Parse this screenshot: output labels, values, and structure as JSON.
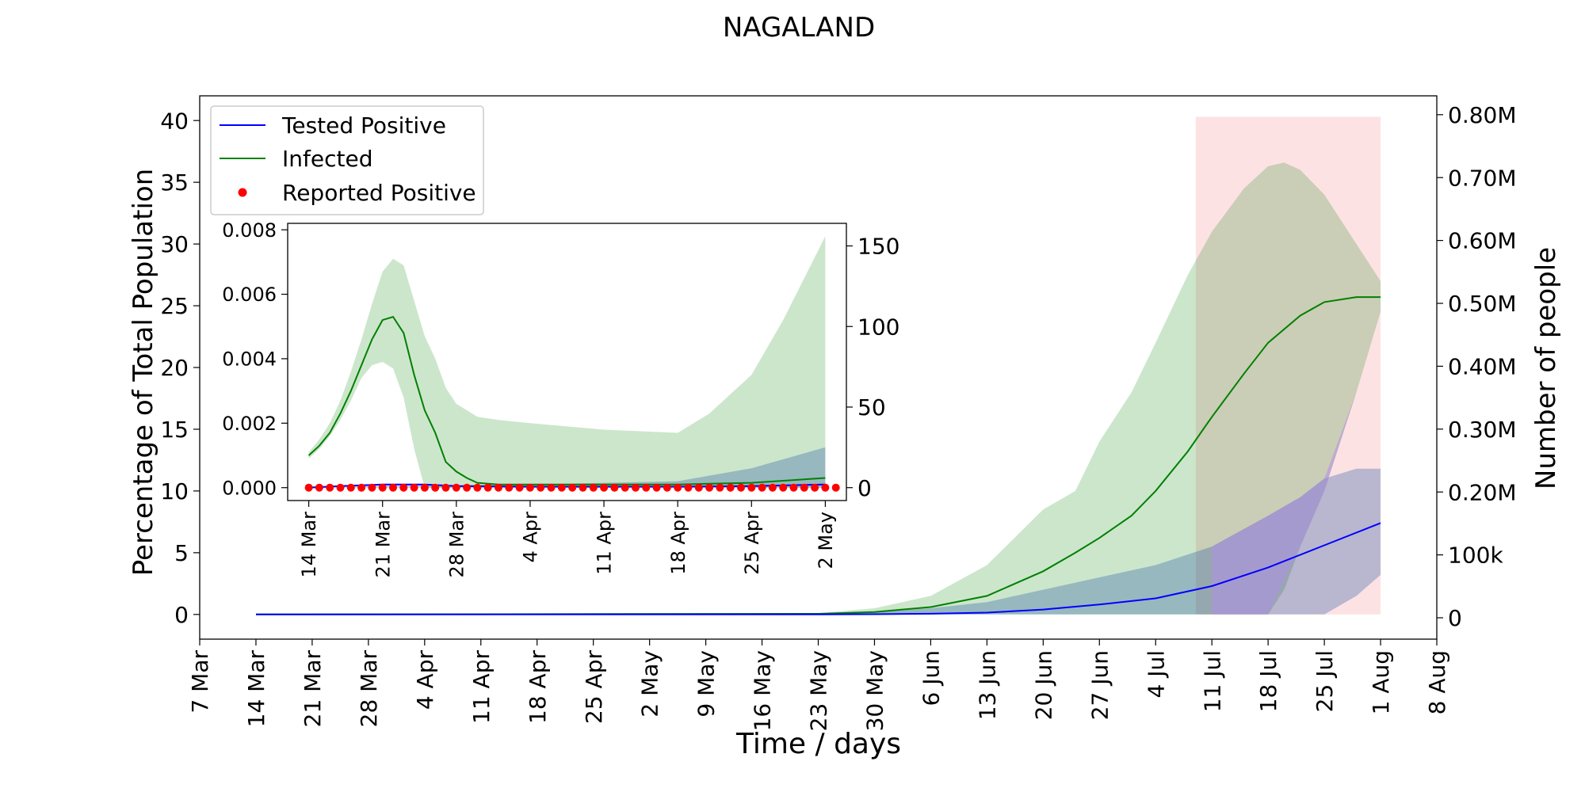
{
  "chart_data": [
    {
      "id": "main",
      "type": "line",
      "title": "NAGALAND",
      "xlabel": "Time / days",
      "ylabel": "Percentage of Total Population",
      "ylabel_right": "Number of people",
      "x_range": [
        "2020-03-07",
        "2020-08-08"
      ],
      "ylim": [
        -2,
        42
      ],
      "ylim_right": [
        -34000,
        830000
      ],
      "x_ticks": [
        "7 Mar",
        "14 Mar",
        "21 Mar",
        "28 Mar",
        "4 Apr",
        "11 Apr",
        "18 Apr",
        "25 Apr",
        "2 May",
        "9 May",
        "16 May",
        "23 May",
        "30 May",
        "6 Jun",
        "13 Jun",
        "20 Jun",
        "27 Jun",
        "4 Jul",
        "11 Jul",
        "18 Jul",
        "25 Jul",
        "1 Aug",
        "8 Aug"
      ],
      "y_ticks": [
        "0",
        "5",
        "10",
        "15",
        "20",
        "25",
        "30",
        "35",
        "40"
      ],
      "y_ticks_right": [
        "0",
        "100k",
        "0.20M",
        "0.30M",
        "0.40M",
        "0.50M",
        "0.60M",
        "0.70M",
        "0.80M"
      ],
      "legend_position": "top-left",
      "legend": [
        "Tested Positive",
        "Infected",
        "Reported Positive"
      ],
      "highlight_region": {
        "x": [
          "2020-07-09",
          "2020-08-01"
        ],
        "y": [
          0,
          40.3
        ],
        "color": "#fde2e4"
      },
      "series": [
        {
          "name": "Infected",
          "color": "#008000",
          "x": [
            "2020-03-14",
            "2020-05-23",
            "2020-05-30",
            "2020-06-06",
            "2020-06-13",
            "2020-06-20",
            "2020-06-24",
            "2020-06-27",
            "2020-07-01",
            "2020-07-04",
            "2020-07-08",
            "2020-07-11",
            "2020-07-15",
            "2020-07-18",
            "2020-07-22",
            "2020-07-25",
            "2020-07-29",
            "2020-08-01"
          ],
          "values": [
            0,
            0.05,
            0.2,
            0.6,
            1.5,
            3.5,
            5,
            6.2,
            8,
            10,
            13.2,
            16,
            19.5,
            22,
            24.2,
            25.3,
            25.7,
            25.7
          ]
        },
        {
          "name": "Infected (range)",
          "color": "#cce5cc",
          "x": [
            "2020-05-23",
            "2020-05-30",
            "2020-06-06",
            "2020-06-13",
            "2020-06-20",
            "2020-06-24",
            "2020-06-27",
            "2020-07-01",
            "2020-07-04",
            "2020-07-08",
            "2020-07-11",
            "2020-07-15",
            "2020-07-18",
            "2020-07-20",
            "2020-07-22",
            "2020-07-25",
            "2020-07-29",
            "2020-08-01"
          ],
          "lower": [
            0,
            0,
            0,
            0,
            0,
            0,
            0,
            0,
            0,
            0,
            0,
            0,
            0,
            2,
            5.5,
            10,
            18,
            24.5
          ],
          "upper": [
            0.1,
            0.5,
            1.5,
            4,
            8.5,
            10,
            14,
            18,
            22,
            27.5,
            31,
            34.5,
            36.3,
            36.6,
            36,
            34,
            30,
            27
          ]
        },
        {
          "name": "Tested Positive",
          "color": "#0000ff",
          "x": [
            "2020-03-14",
            "2020-05-23",
            "2020-05-30",
            "2020-06-06",
            "2020-06-13",
            "2020-06-20",
            "2020-06-27",
            "2020-07-04",
            "2020-07-11",
            "2020-07-18",
            "2020-07-25",
            "2020-08-01"
          ],
          "values": [
            0,
            0,
            0.02,
            0.06,
            0.15,
            0.4,
            0.8,
            1.3,
            2.3,
            3.8,
            5.6,
            7.4
          ]
        },
        {
          "name": "Tested Positive (range)",
          "color": "#a6bed8",
          "x": [
            "2020-05-23",
            "2020-05-30",
            "2020-06-06",
            "2020-06-13",
            "2020-06-20",
            "2020-06-27",
            "2020-07-04",
            "2020-07-11",
            "2020-07-18",
            "2020-07-22",
            "2020-07-25",
            "2020-07-29",
            "2020-08-01"
          ],
          "lower": [
            0,
            0,
            0,
            0,
            0,
            0,
            0,
            0,
            0,
            0,
            0,
            1.5,
            3.2
          ],
          "upper": [
            0.05,
            0.2,
            0.5,
            1,
            2,
            3,
            4,
            5.5,
            8,
            9.5,
            11,
            11.8,
            11.8
          ]
        }
      ]
    },
    {
      "id": "inset",
      "type": "line",
      "x_range": [
        "2020-03-12",
        "2020-05-04"
      ],
      "ylim": [
        -0.0004,
        0.0082
      ],
      "ylim_right": [
        -8,
        164
      ],
      "x_ticks": [
        "14 Mar",
        "21 Mar",
        "28 Mar",
        "4 Apr",
        "11 Apr",
        "18 Apr",
        "25 Apr",
        "2 May"
      ],
      "y_ticks": [
        "0.000",
        "0.002",
        "0.004",
        "0.006",
        "0.008"
      ],
      "y_ticks_right": [
        "0",
        "50",
        "100",
        "150"
      ],
      "series": [
        {
          "name": "Infected",
          "color": "#008000",
          "x": [
            "2020-03-14",
            "2020-03-15",
            "2020-03-16",
            "2020-03-17",
            "2020-03-18",
            "2020-03-19",
            "2020-03-20",
            "2020-03-21",
            "2020-03-22",
            "2020-03-23",
            "2020-03-24",
            "2020-03-25",
            "2020-03-26",
            "2020-03-27",
            "2020-03-28",
            "2020-03-29",
            "2020-03-30",
            "2020-04-01",
            "2020-04-04",
            "2020-04-11",
            "2020-04-18",
            "2020-04-25",
            "2020-05-02"
          ],
          "values": [
            0.001,
            0.0013,
            0.0017,
            0.0023,
            0.003,
            0.0038,
            0.0046,
            0.0052,
            0.0053,
            0.0048,
            0.0035,
            0.0024,
            0.0017,
            0.0008,
            0.0005,
            0.0003,
            0.00015,
            0.0001,
            0.0001,
            0.0001,
            0.0001,
            0.00015,
            0.0003
          ]
        },
        {
          "name": "Infected (range)",
          "color": "#cce5cc",
          "x": [
            "2020-03-14",
            "2020-03-15",
            "2020-03-16",
            "2020-03-17",
            "2020-03-18",
            "2020-03-19",
            "2020-03-20",
            "2020-03-21",
            "2020-03-22",
            "2020-03-23",
            "2020-03-24",
            "2020-03-25",
            "2020-03-26",
            "2020-03-27",
            "2020-03-28",
            "2020-03-29",
            "2020-03-30",
            "2020-04-01",
            "2020-04-04",
            "2020-04-11",
            "2020-04-18",
            "2020-04-21",
            "2020-04-25",
            "2020-04-28",
            "2020-05-02"
          ],
          "lower": [
            0.0009,
            0.0012,
            0.0016,
            0.0021,
            0.0027,
            0.0034,
            0.0038,
            0.0039,
            0.0037,
            0.0028,
            0.0012,
            0,
            0,
            0,
            0,
            0,
            0,
            0,
            0,
            0,
            0,
            0,
            0,
            0,
            0
          ],
          "upper": [
            0.0011,
            0.0015,
            0.002,
            0.0027,
            0.0036,
            0.0046,
            0.0057,
            0.0067,
            0.0071,
            0.0069,
            0.0058,
            0.0047,
            0.004,
            0.0031,
            0.0026,
            0.0024,
            0.0022,
            0.0021,
            0.002,
            0.0018,
            0.0017,
            0.0023,
            0.0035,
            0.0052,
            0.0078
          ]
        },
        {
          "name": "Tested Positive",
          "color": "#0000ff",
          "x": [
            "2020-03-14",
            "2020-03-17",
            "2020-03-21",
            "2020-03-25",
            "2020-03-28",
            "2020-04-04",
            "2020-04-11",
            "2020-04-18",
            "2020-04-25",
            "2020-05-02"
          ],
          "values": [
            0,
            5e-05,
            0.0001,
            0.0001,
            5e-05,
            3e-05,
            3e-05,
            3e-05,
            5e-05,
            0.0001
          ]
        },
        {
          "name": "Tested Positive (range)",
          "color": "#a6bed8",
          "x": [
            "2020-03-14",
            "2020-04-04",
            "2020-04-18",
            "2020-04-25",
            "2020-05-02"
          ],
          "lower": [
            0,
            0,
            0,
            0,
            0
          ],
          "upper": [
            5e-05,
            0.0001,
            0.0002,
            0.0006,
            0.00125
          ]
        },
        {
          "name": "Reported Positive",
          "type": "scatter",
          "color": "#ff0000",
          "x": [
            "2020-03-14",
            "2020-03-15",
            "2020-03-16",
            "2020-03-17",
            "2020-03-18",
            "2020-03-19",
            "2020-03-20",
            "2020-03-21",
            "2020-03-22",
            "2020-03-23",
            "2020-03-24",
            "2020-03-25",
            "2020-03-26",
            "2020-03-27",
            "2020-03-28",
            "2020-03-29",
            "2020-03-30",
            "2020-03-31",
            "2020-04-01",
            "2020-04-02",
            "2020-04-03",
            "2020-04-04",
            "2020-04-05",
            "2020-04-06",
            "2020-04-07",
            "2020-04-08",
            "2020-04-09",
            "2020-04-10",
            "2020-04-11",
            "2020-04-12",
            "2020-04-13",
            "2020-04-14",
            "2020-04-15",
            "2020-04-16",
            "2020-04-17",
            "2020-04-18",
            "2020-04-19",
            "2020-04-20",
            "2020-04-21",
            "2020-04-22",
            "2020-04-23",
            "2020-04-24",
            "2020-04-25",
            "2020-04-26",
            "2020-04-27",
            "2020-04-28",
            "2020-04-29",
            "2020-04-30",
            "2020-05-01",
            "2020-05-02",
            "2020-05-03"
          ],
          "values": [
            0,
            0,
            0,
            0,
            0,
            0,
            0,
            0,
            0,
            0,
            0,
            0,
            0,
            0,
            0,
            0,
            0,
            0,
            0,
            0,
            0,
            0,
            0,
            0,
            0,
            0,
            0,
            0,
            0,
            0,
            0,
            0,
            0,
            0,
            0,
            0,
            0,
            0,
            0,
            0,
            0,
            0,
            0,
            0,
            0,
            0,
            0,
            0,
            0,
            0,
            0
          ]
        }
      ]
    }
  ]
}
